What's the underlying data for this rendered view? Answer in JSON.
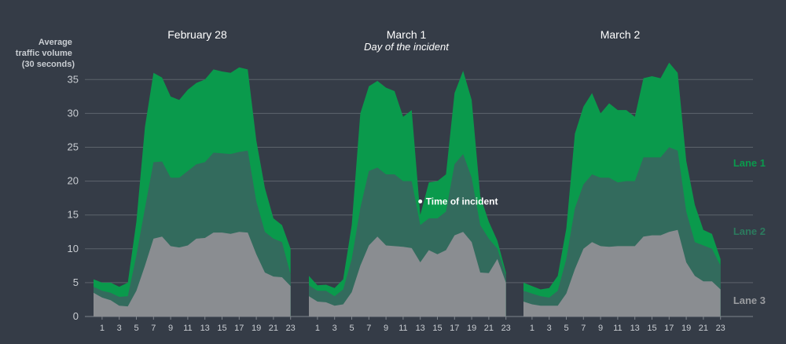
{
  "colors": {
    "background": "#353c47",
    "grid": "#5d636c",
    "lane1": "#0a9a4c",
    "lane2": "#336b5d",
    "lane3": "#8a8d91",
    "lane1_label": "#0a9a4c",
    "lane2_label": "#2c7a5e",
    "lane3_label": "#9a9ca0"
  },
  "chart_data": {
    "type": "area",
    "stacked": true,
    "ylabel": [
      "Average",
      "traffic volume",
      "(30 seconds)"
    ],
    "ylim": [
      0,
      37
    ],
    "yticks": [
      0,
      5,
      10,
      15,
      20,
      25,
      30,
      35
    ],
    "grid": "horizontal",
    "x": [
      0,
      1,
      2,
      3,
      4,
      5,
      6,
      7,
      8,
      9,
      10,
      11,
      12,
      13,
      14,
      15,
      16,
      17,
      18,
      19,
      20,
      21,
      22,
      23
    ],
    "xticks": [
      1,
      3,
      5,
      7,
      9,
      11,
      13,
      15,
      17,
      19,
      21,
      23
    ],
    "series_labels": [
      "Lane 1",
      "Lane 2",
      "Lane 3"
    ],
    "panels": [
      {
        "title": "February 28",
        "subtitle": "",
        "lane3": [
          3.5,
          2.8,
          2.4,
          1.6,
          1.5,
          3.8,
          7.5,
          11.5,
          11.8,
          10.4,
          10.2,
          10.5,
          11.5,
          11.6,
          12.4,
          12.4,
          12.2,
          12.5,
          12.4,
          9.2,
          6.5,
          5.9,
          5.8,
          4.5
        ],
        "lane2": [
          4.4,
          3.8,
          3.5,
          2.9,
          3.0,
          9.0,
          16.0,
          22.8,
          22.9,
          20.5,
          20.5,
          21.5,
          22.5,
          22.8,
          24.2,
          24.1,
          24.0,
          24.3,
          24.5,
          17.0,
          12.5,
          11.5,
          11.0,
          6.2
        ],
        "lane1": [
          5.5,
          5.0,
          5.0,
          4.4,
          5.0,
          14.0,
          28.0,
          36.0,
          35.3,
          32.5,
          32.0,
          33.5,
          34.5,
          35.0,
          36.5,
          36.2,
          36.0,
          36.8,
          36.5,
          26.0,
          19.0,
          14.5,
          13.5,
          10.0
        ]
      },
      {
        "title": "March 1",
        "subtitle": "Day of the incident",
        "lane3": [
          3.0,
          2.2,
          2.1,
          1.6,
          1.8,
          3.6,
          7.5,
          10.5,
          11.8,
          10.5,
          10.4,
          10.3,
          10.1,
          8.0,
          9.8,
          9.2,
          9.8,
          12.0,
          12.5,
          11.0,
          6.5,
          6.4,
          8.5,
          5.0
        ],
        "lane2": [
          4.6,
          3.8,
          3.8,
          3.0,
          4.0,
          8.5,
          16.0,
          21.5,
          22.0,
          21.0,
          21.0,
          20.0,
          20.0,
          13.5,
          14.5,
          14.5,
          15.5,
          22.5,
          24.0,
          20.5,
          13.5,
          11.5,
          10.0,
          6.0
        ],
        "lane1": [
          6.0,
          4.6,
          4.7,
          4.2,
          5.5,
          13.5,
          30.0,
          34.0,
          34.8,
          33.8,
          33.3,
          29.5,
          30.5,
          15.0,
          19.8,
          20.0,
          21.0,
          33.0,
          36.3,
          32.0,
          17.8,
          14.0,
          11.2,
          6.5
        ]
      },
      {
        "title": "March 2",
        "subtitle": "",
        "lane3": [
          2.2,
          1.8,
          1.6,
          1.6,
          1.6,
          3.4,
          7.0,
          10.0,
          11.0,
          10.4,
          10.3,
          10.4,
          10.4,
          10.4,
          11.8,
          12.0,
          12.0,
          12.5,
          12.8,
          8.0,
          6.0,
          5.2,
          5.2,
          4.0
        ],
        "lane2": [
          3.8,
          3.4,
          3.0,
          2.8,
          3.8,
          8.5,
          16.0,
          19.5,
          21.0,
          20.5,
          20.5,
          19.8,
          20.0,
          20.0,
          23.5,
          23.5,
          23.5,
          25.0,
          24.5,
          15.5,
          11.0,
          10.5,
          10.0,
          7.5
        ],
        "lane1": [
          5.0,
          4.5,
          4.0,
          4.2,
          6.0,
          13.0,
          27.0,
          31.0,
          33.0,
          30.0,
          31.5,
          30.5,
          30.5,
          29.5,
          35.2,
          35.5,
          35.2,
          37.5,
          36.0,
          23.0,
          16.5,
          12.8,
          12.2,
          8.5
        ]
      }
    ],
    "annotation": {
      "text": "Time of incident",
      "panel": 1,
      "x": 13,
      "y": 17
    }
  }
}
